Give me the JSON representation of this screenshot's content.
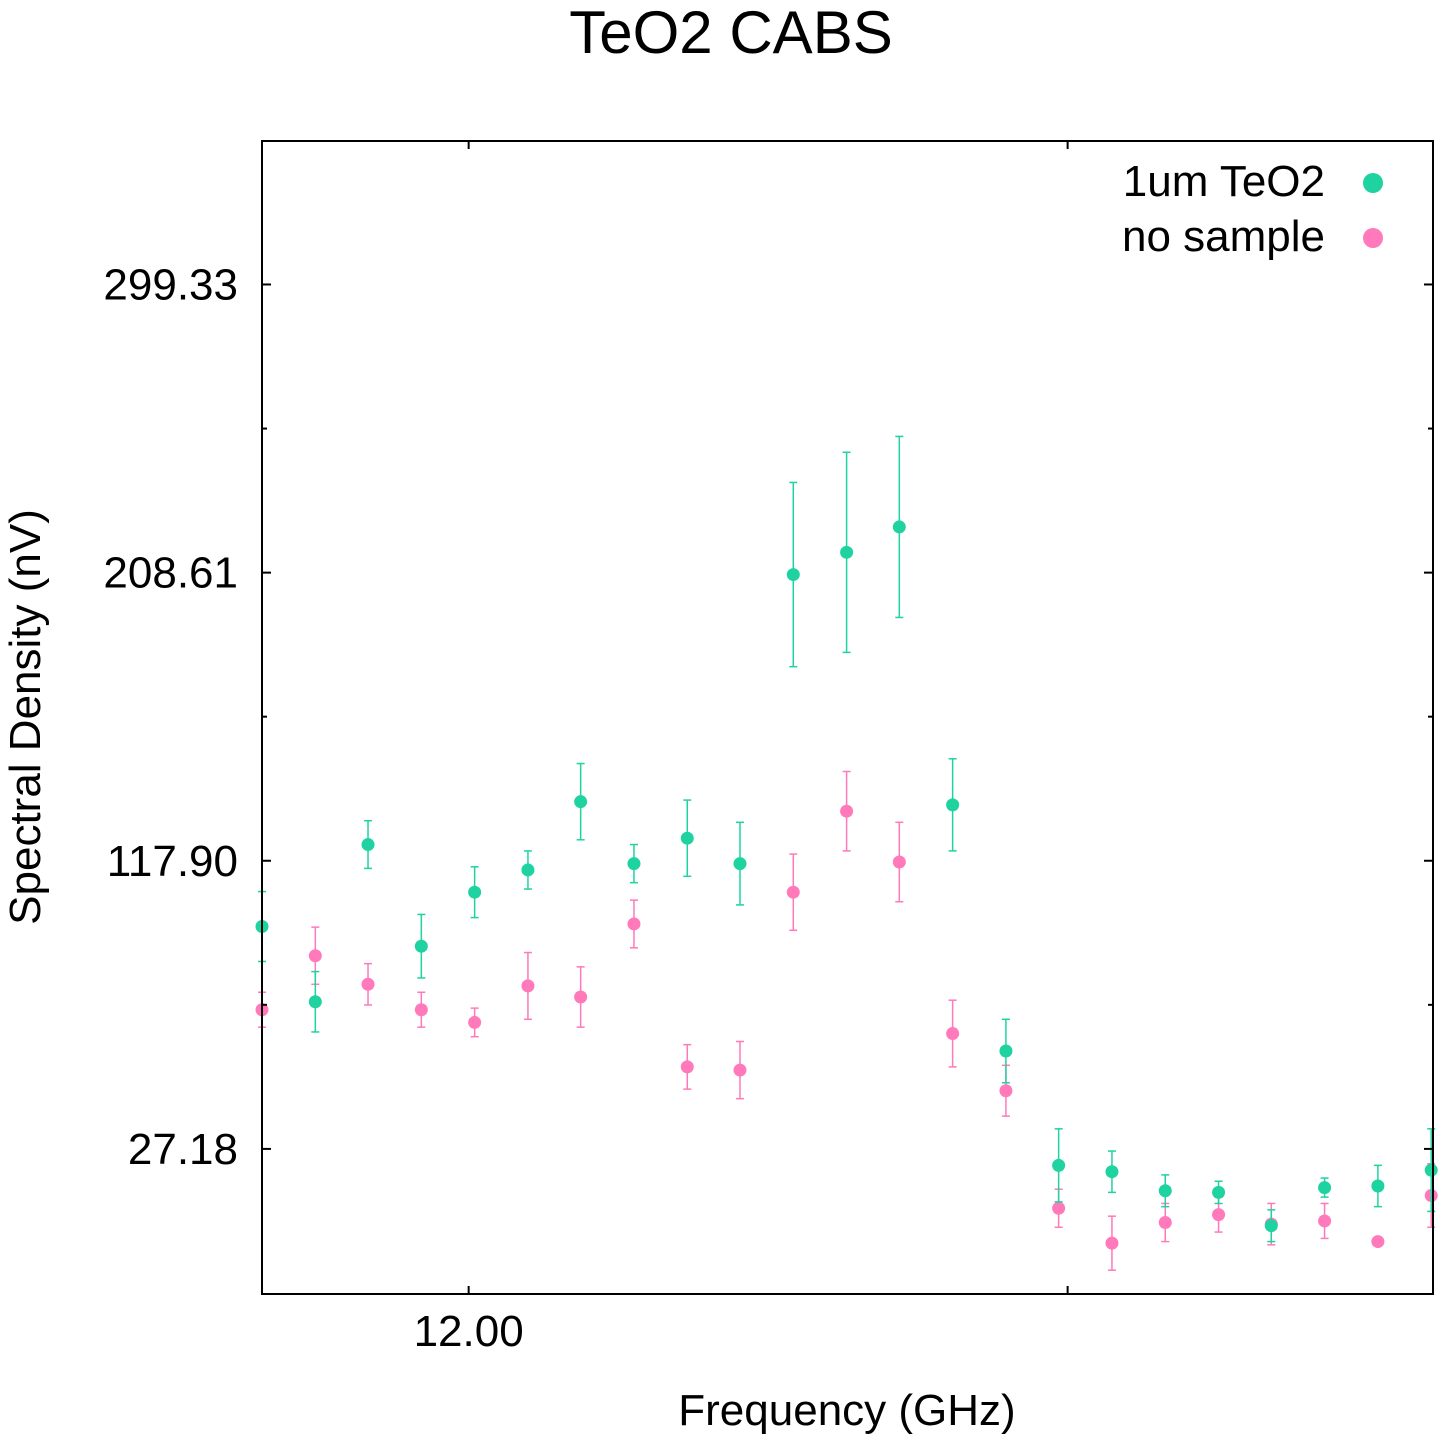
{
  "chart_data": {
    "type": "scatter",
    "title": "TeO2 CABS",
    "xlabel": "Frequency (GHz)",
    "ylabel": "Spectral Density (nV)",
    "x_ticks": [
      {
        "value": 12.0,
        "label": "12.00"
      },
      {
        "value": 13.0,
        "label": ""
      }
    ],
    "y_ticks": [
      {
        "value": 27.18,
        "label": "27.18"
      },
      {
        "value": 72.54,
        "label": ""
      },
      {
        "value": 117.9,
        "label": "117.90"
      },
      {
        "value": 163.26,
        "label": ""
      },
      {
        "value": 208.61,
        "label": "208.61"
      },
      {
        "value": 253.97,
        "label": ""
      },
      {
        "value": 299.33,
        "label": "299.33"
      }
    ],
    "xlim": [
      11.655,
      13.61
    ],
    "ylim": [
      -18.5,
      344.5
    ],
    "legend_position": "top-right",
    "colors": {
      "teo2": "#1fd3a1",
      "no_sample": "#ff79bb"
    },
    "series": [
      {
        "name": "1um TeO2",
        "color": "#1fd3a1",
        "x": [
          11.655,
          11.744,
          11.832,
          11.921,
          12.01,
          12.099,
          12.187,
          12.276,
          12.365,
          12.453,
          12.542,
          12.631,
          12.719,
          12.808,
          12.897,
          12.985,
          13.074,
          13.163,
          13.252,
          13.34,
          13.429,
          13.518,
          13.607
        ],
        "y": [
          97.2,
          73.5,
          123.0,
          91.0,
          108.0,
          115.0,
          136.5,
          117.0,
          125.0,
          117.0,
          208.0,
          215.0,
          223.0,
          135.5,
          58.0,
          22.0,
          20.0,
          14.0,
          13.5,
          3.0,
          15.0,
          15.5,
          20.5
        ],
        "err": [
          11.0,
          9.5,
          7.5,
          10.0,
          8.0,
          6.0,
          12.0,
          6.0,
          12.0,
          13.0,
          29.0,
          31.5,
          28.5,
          14.5,
          10.0,
          11.5,
          6.5,
          5.0,
          3.5,
          5.0,
          3.0,
          6.5,
          13.0
        ]
      },
      {
        "name": "no sample",
        "color": "#ff79bb",
        "x": [
          11.655,
          11.744,
          11.832,
          11.921,
          12.01,
          12.099,
          12.187,
          12.276,
          12.365,
          12.453,
          12.542,
          12.631,
          12.719,
          12.808,
          12.897,
          12.985,
          13.074,
          13.163,
          13.252,
          13.34,
          13.429,
          13.518,
          13.607
        ],
        "y": [
          71.0,
          88.0,
          79.0,
          71.0,
          67.0,
          78.5,
          75.0,
          98.0,
          53.0,
          52.0,
          108.0,
          133.5,
          117.5,
          63.5,
          45.5,
          8.5,
          -2.5,
          4.0,
          6.5,
          3.5,
          4.5,
          -2.0,
          12.5
        ],
        "err": [
          5.5,
          9.0,
          6.5,
          5.5,
          4.5,
          10.5,
          9.5,
          7.5,
          7.0,
          9.0,
          12.0,
          12.5,
          12.5,
          10.5,
          8.0,
          6.0,
          8.5,
          6.0,
          5.5,
          6.5,
          5.5,
          0,
          10.0
        ]
      }
    ]
  }
}
